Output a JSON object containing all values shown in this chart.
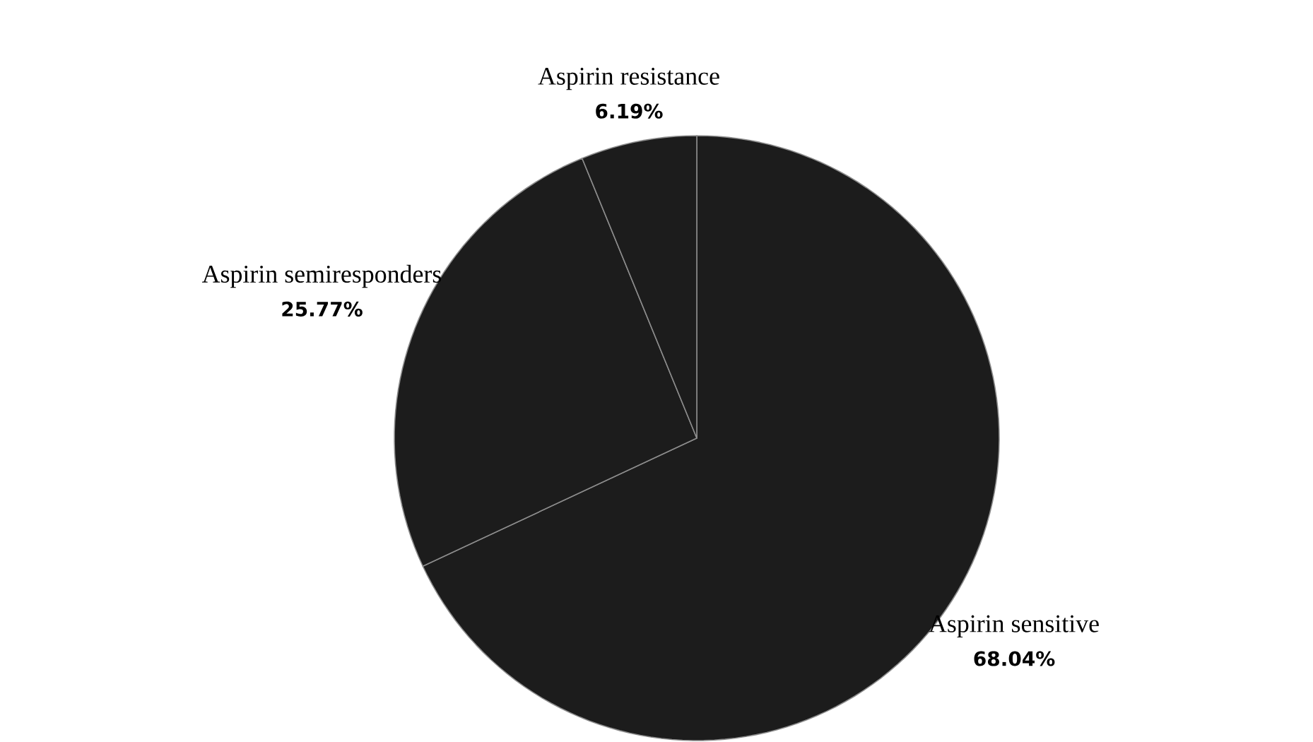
{
  "chart_data": {
    "type": "pie",
    "categories": [
      "Aspirin sensitive",
      "Aspirin semiresponders",
      "Aspirin resistance"
    ],
    "values": [
      68.04,
      25.77,
      6.19
    ],
    "colors": [
      "#1c1c1c",
      "#1c1c1c",
      "#1c1c1c"
    ],
    "value_labels": [
      "68.04%",
      "25.77%",
      "6.19%"
    ]
  }
}
